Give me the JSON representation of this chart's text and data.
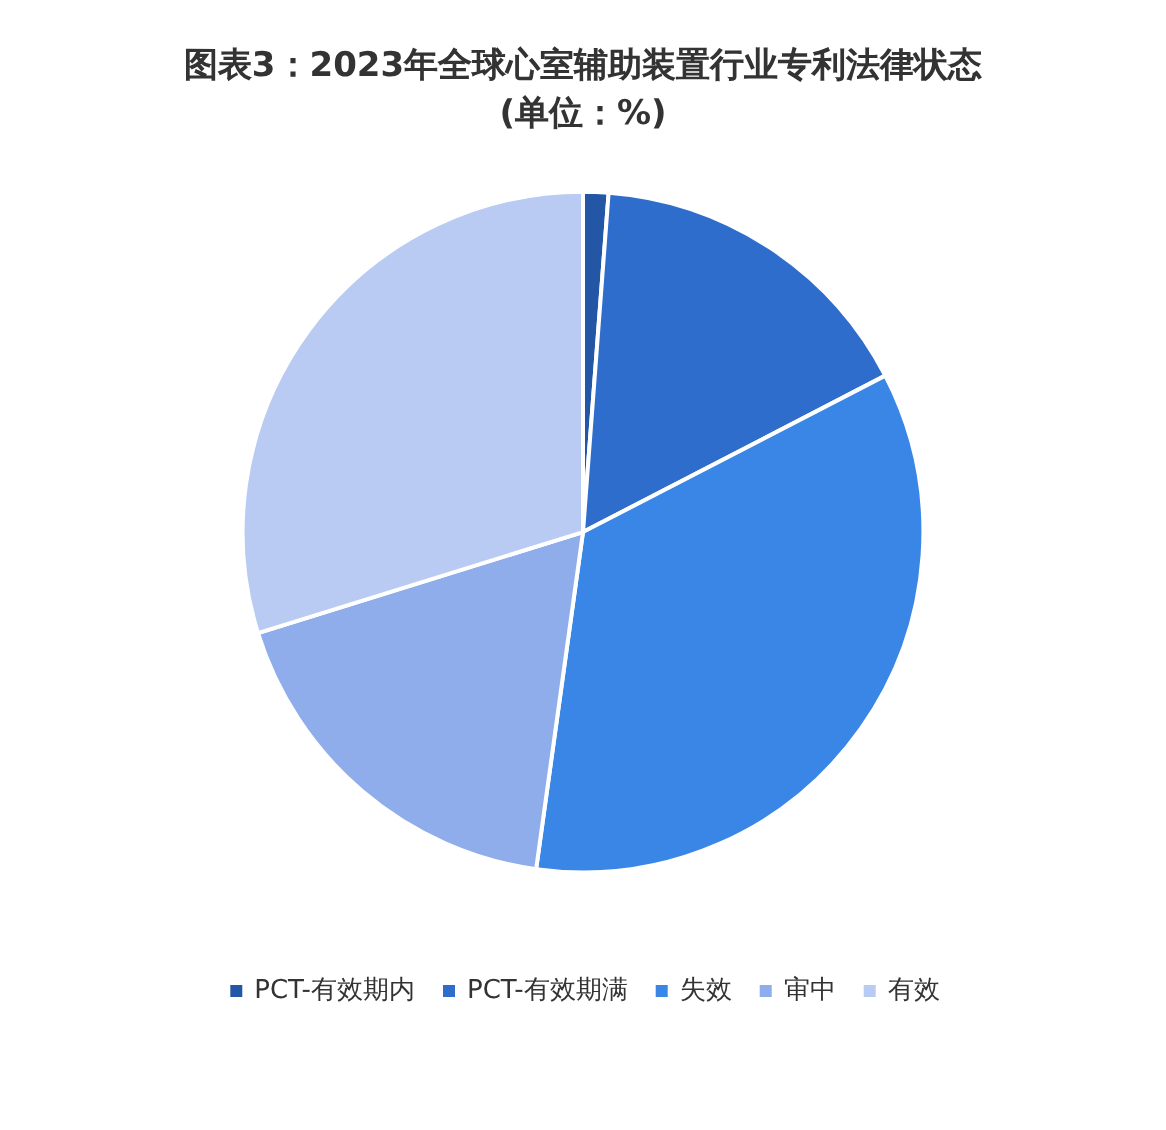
{
  "chart_data": {
    "type": "pie",
    "title": "图表3：2023年全球心室辅助装置行业专利法律状态\n(单位：%)",
    "categories": [
      "PCT-有效期内",
      "PCT-有效期满",
      "失效",
      "审中",
      "有效"
    ],
    "values": [
      1.2,
      16.2,
      34.8,
      18,
      29.8
    ],
    "colors": [
      "#2456a6",
      "#2f6dcc",
      "#3a86e6",
      "#8eadea",
      "#b9cbf3"
    ],
    "legend": "bottom"
  }
}
